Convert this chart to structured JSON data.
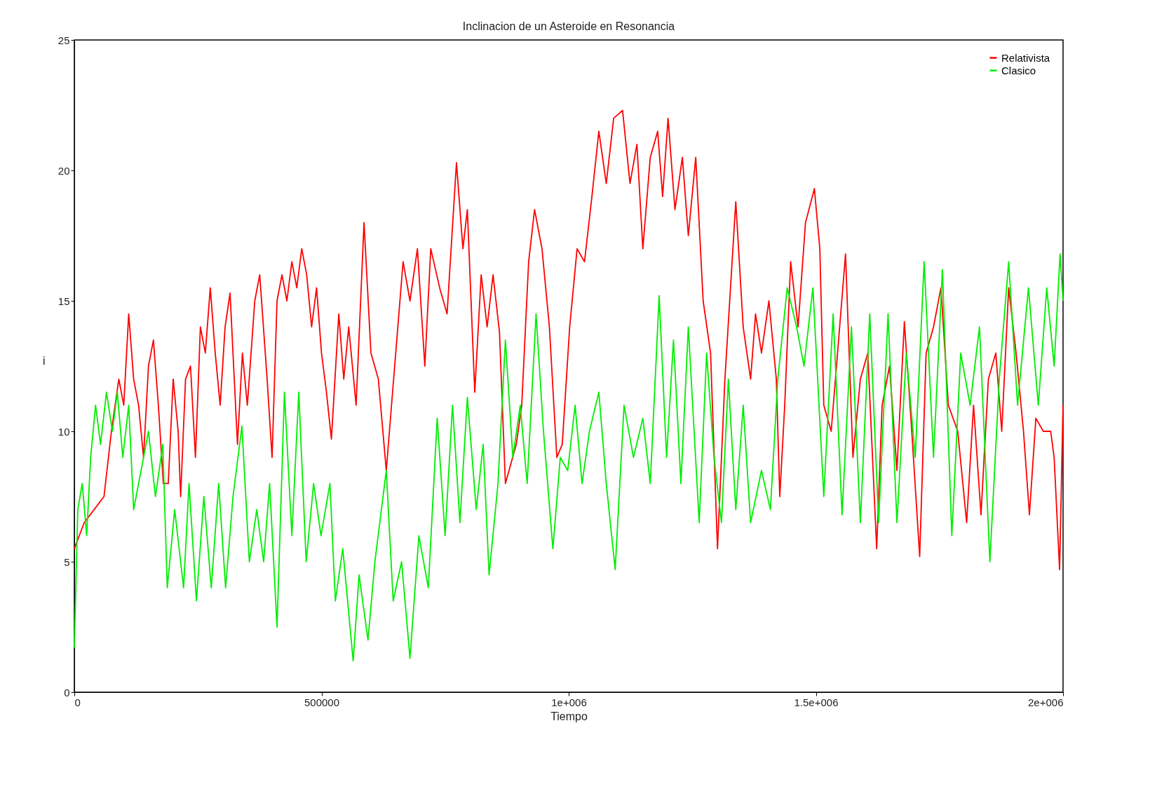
{
  "chart_data": {
    "type": "line",
    "title": "Inclinacion de un Asteroide en Resonancia",
    "xlabel": "Tiempo",
    "ylabel": "i",
    "xlim": [
      0,
      2000000
    ],
    "xticks": [
      0,
      500000,
      {
        "value": 1000000,
        "label": "1e+006"
      },
      {
        "value": 1500000,
        "label": "1.5e+006"
      },
      {
        "value": 2000000,
        "label": "2e+006"
      }
    ],
    "ylim": [
      0,
      25
    ],
    "yticks": [
      0,
      5,
      10,
      15,
      20,
      25
    ],
    "grid": false,
    "legend": "top right",
    "line_style": "solid",
    "series": [
      {
        "name": "Relativista",
        "color": "#ff0000",
        "x": [
          0,
          20000,
          40000,
          60000,
          75000,
          90000,
          100000,
          110000,
          120000,
          130000,
          140000,
          150000,
          160000,
          170000,
          180000,
          190000,
          200000,
          210000,
          215000,
          225000,
          235000,
          245000,
          255000,
          265000,
          275000,
          285000,
          295000,
          305000,
          315000,
          330000,
          340000,
          350000,
          365000,
          375000,
          390000,
          400000,
          410000,
          420000,
          430000,
          440000,
          450000,
          460000,
          470000,
          480000,
          490000,
          500000,
          510000,
          520000,
          535000,
          545000,
          555000,
          570000,
          586000,
          600000,
          615000,
          631000,
          665000,
          679000,
          694000,
          709000,
          721000,
          739000,
          754000,
          773000,
          786000,
          795000,
          810000,
          823000,
          835000,
          847000,
          860000,
          872000,
          894000,
          905000,
          919000,
          931000,
          946000,
          961000,
          976000,
          987000,
          1002000,
          1017000,
          1032000,
          1047000,
          1061000,
          1076000,
          1091000,
          1109000,
          1124000,
          1138000,
          1150000,
          1165000,
          1180000,
          1190000,
          1201000,
          1215000,
          1230000,
          1242000,
          1257000,
          1272000,
          1287000,
          1301000,
          1316000,
          1338000,
          1353000,
          1368000,
          1378000,
          1390000,
          1405000,
          1420000,
          1427000,
          1437000,
          1449000,
          1464000,
          1479000,
          1497000,
          1508000,
          1516000,
          1531000,
          1546000,
          1560000,
          1575000,
          1590000,
          1605000,
          1623000,
          1634000,
          1649000,
          1664000,
          1679000,
          1694000,
          1710000,
          1723000,
          1738000,
          1753000,
          1768000,
          1787000,
          1805000,
          1819000,
          1834000,
          1849000,
          1864000,
          1876000,
          1890000,
          1905000,
          1920000,
          1932000,
          1945000,
          1960000,
          1975000,
          1982000,
          1993000,
          2000000
        ],
        "values": [
          5.5,
          6.5,
          7,
          7.5,
          10,
          12,
          11,
          14.5,
          12,
          11,
          9,
          12.5,
          13.5,
          11,
          8,
          8,
          12,
          10,
          7.5,
          12,
          12.5,
          9,
          14,
          13,
          15.5,
          13,
          11,
          14,
          15.3,
          9.5,
          13,
          11,
          15,
          16,
          12,
          9,
          15,
          16,
          15,
          16.5,
          15.5,
          17,
          16,
          14,
          15.5,
          13,
          11.5,
          9.7,
          14.5,
          12,
          14,
          11,
          18,
          13,
          12,
          8.5,
          16.5,
          15,
          17,
          12.5,
          17,
          15.5,
          14.5,
          20.3,
          17,
          18.5,
          11.5,
          16,
          14,
          16,
          13.8,
          8,
          9.5,
          11,
          16.5,
          18.5,
          17,
          14,
          9,
          9.5,
          14,
          17,
          16.5,
          19,
          21.5,
          19.5,
          22,
          22.3,
          19.5,
          21,
          17,
          20.5,
          21.5,
          19,
          22,
          18.5,
          20.5,
          17.5,
          20.5,
          15,
          13,
          5.5,
          12,
          18.8,
          14,
          12,
          14.5,
          13,
          15,
          12,
          7.5,
          11,
          16.5,
          14,
          18,
          19.3,
          17,
          11,
          10,
          13.5,
          16.8,
          9,
          12,
          13,
          5.5,
          11,
          12.5,
          8.5,
          14.2,
          10,
          5.2,
          13,
          14,
          15.5,
          11,
          10,
          6.5,
          11,
          6.8,
          12,
          13,
          10,
          15.5,
          13,
          10,
          6.8,
          10.5,
          10,
          10,
          9,
          4.7,
          11
        ]
      },
      {
        "name": "Clasico",
        "color": "#00ee00",
        "x": [
          0,
          7000,
          16000,
          25000,
          33000,
          43000,
          53000,
          65000,
          77000,
          87000,
          98000,
          110000,
          120000,
          135000,
          150000,
          164000,
          179000,
          188000,
          203000,
          221000,
          232000,
          247000,
          262000,
          277000,
          292000,
          306000,
          321000,
          339000,
          354000,
          369000,
          383000,
          395000,
          410000,
          425000,
          440000,
          454000,
          469000,
          484000,
          499000,
          517000,
          528000,
          543000,
          564000,
          576000,
          594000,
          608000,
          631000,
          645000,
          662000,
          679000,
          697000,
          716000,
          734000,
          750000,
          765000,
          780000,
          795000,
          813000,
          827000,
          839000,
          857000,
          872000,
          887000,
          902000,
          916000,
          934000,
          949000,
          968000,
          983000,
          998000,
          1013000,
          1027000,
          1042000,
          1061000,
          1076000,
          1094000,
          1112000,
          1131000,
          1150000,
          1165000,
          1183000,
          1198000,
          1212000,
          1227000,
          1242000,
          1264000,
          1279000,
          1294000,
          1309000,
          1323000,
          1338000,
          1353000,
          1368000,
          1390000,
          1408000,
          1423000,
          1442000,
          1461000,
          1476000,
          1494000,
          1516000,
          1535000,
          1553000,
          1572000,
          1590000,
          1609000,
          1627000,
          1646000,
          1664000,
          1683000,
          1701000,
          1719000,
          1738000,
          1756000,
          1775000,
          1793000,
          1812000,
          1831000,
          1852000,
          1871000,
          1890000,
          1908000,
          1930000,
          1950000,
          1967000,
          1982000,
          1994000,
          2000000
        ],
        "values": [
          1.7,
          7,
          8,
          6,
          9,
          11,
          9.5,
          11.5,
          10,
          11.5,
          9,
          11,
          7,
          8.5,
          10,
          7.5,
          9.5,
          4,
          7,
          4,
          8,
          3.5,
          7.5,
          4,
          8,
          4,
          7.5,
          10.2,
          5,
          7,
          5,
          8,
          2.5,
          11.5,
          6,
          11.5,
          5,
          8,
          6,
          8,
          3.5,
          5.5,
          1.2,
          4.5,
          2,
          5,
          8.5,
          3.5,
          5,
          1.3,
          6,
          4,
          10.5,
          6,
          11,
          6.5,
          11.3,
          7,
          9.5,
          4.5,
          8,
          13.5,
          9,
          11,
          8,
          14.5,
          10,
          5.5,
          9,
          8.5,
          11,
          8,
          10,
          11.5,
          8,
          4.7,
          11,
          9,
          10.5,
          8,
          15.2,
          9,
          13.5,
          8,
          14,
          6.5,
          13,
          9,
          6.5,
          12,
          7,
          11,
          6.5,
          8.5,
          7,
          12,
          15.5,
          14,
          12.5,
          15.5,
          7.5,
          14.5,
          6.8,
          14,
          6.5,
          14.5,
          6.5,
          14.5,
          6.5,
          13,
          9,
          16.5,
          9,
          16.2,
          6,
          13,
          11,
          14,
          5,
          12,
          16.5,
          11,
          15.5,
          11,
          15.5,
          12.5,
          16.8,
          15
        ]
      }
    ]
  }
}
